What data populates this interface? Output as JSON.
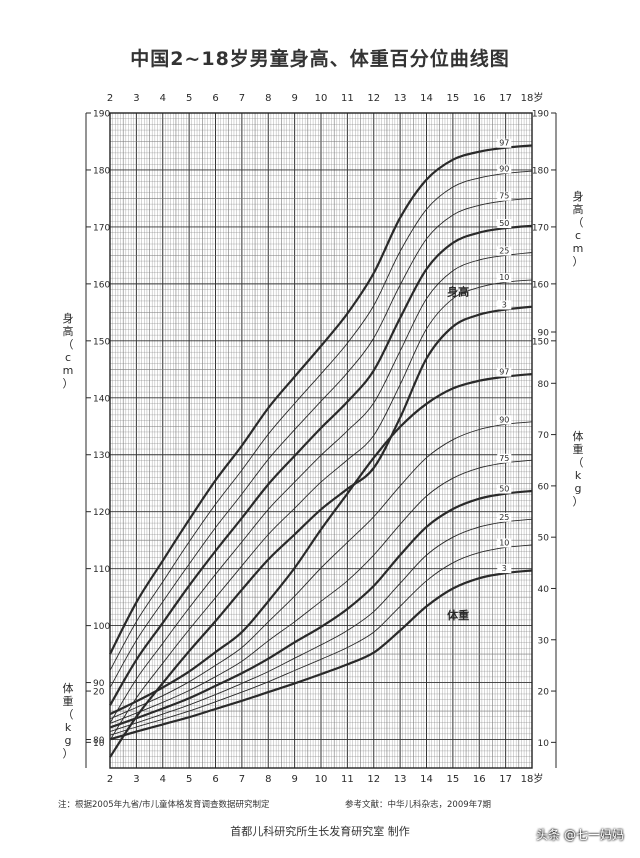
{
  "chart_data": {
    "type": "line",
    "title": "中国2~18岁男童身高、体重百分位曲线图",
    "x": [
      2,
      3,
      4,
      5,
      6,
      7,
      8,
      9,
      10,
      11,
      12,
      13,
      14,
      15,
      16,
      17,
      18
    ],
    "x_tick_labels": [
      "2",
      "3",
      "4",
      "5",
      "6",
      "7",
      "8",
      "9",
      "10",
      "11",
      "12",
      "13",
      "14",
      "15",
      "16",
      "17",
      "18岁"
    ],
    "xlim": [
      2,
      18
    ],
    "height_axis": {
      "label": "身高（cm）",
      "ylim": [
        75,
        190
      ],
      "ticks": [
        80,
        90,
        100,
        110,
        120,
        130,
        140,
        150,
        160,
        170,
        180,
        190
      ],
      "right_ticks": [
        150,
        160,
        170,
        180,
        190
      ],
      "series_label": "身高"
    },
    "weight_axis": {
      "label": "体重（kg）",
      "ylim": [
        5,
        90
      ],
      "ticks": [
        10,
        20,
        30,
        40,
        50,
        60,
        70,
        80,
        90
      ],
      "left_ticks": [
        10,
        20
      ],
      "series_label": "体重"
    },
    "height_series": [
      {
        "name": "97",
        "values": [
          95.0,
          104.1,
          111.4,
          118.6,
          125.5,
          131.6,
          138.2,
          143.7,
          149.1,
          154.8,
          161.9,
          171.6,
          178.3,
          181.8,
          183.2,
          183.9,
          184.3
        ]
      },
      {
        "name": "90",
        "values": [
          92.1,
          100.7,
          107.7,
          114.7,
          121.3,
          127.3,
          133.6,
          139.0,
          144.2,
          149.6,
          156.2,
          165.7,
          173.1,
          177.0,
          178.6,
          179.4,
          179.8
        ]
      },
      {
        "name": "75",
        "values": [
          89.1,
          97.4,
          104.2,
          110.8,
          117.2,
          123.1,
          129.2,
          134.4,
          139.4,
          144.4,
          150.5,
          159.8,
          167.9,
          172.1,
          173.8,
          174.6,
          175.0
        ]
      },
      {
        "name": "50",
        "values": [
          86.0,
          94.0,
          100.5,
          107.0,
          113.1,
          118.9,
          124.8,
          129.8,
          134.7,
          139.3,
          144.8,
          154.0,
          162.6,
          167.2,
          169.0,
          169.8,
          170.2
        ]
      },
      {
        "name": "25",
        "values": [
          82.9,
          90.6,
          96.9,
          103.1,
          109.0,
          114.7,
          120.4,
          125.2,
          129.9,
          134.2,
          139.1,
          148.2,
          157.4,
          162.3,
          164.2,
          165.0,
          165.5
        ]
      },
      {
        "name": "10",
        "values": [
          79.9,
          87.3,
          93.4,
          99.3,
          104.9,
          110.5,
          116.0,
          120.6,
          125.2,
          129.1,
          133.4,
          142.3,
          152.1,
          157.4,
          159.4,
          160.3,
          160.7
        ]
      },
      {
        "name": "3",
        "values": [
          76.9,
          84.0,
          89.9,
          95.5,
          100.8,
          106.3,
          111.6,
          116.0,
          120.4,
          124.0,
          127.7,
          136.5,
          146.9,
          152.5,
          154.6,
          155.5,
          156.0
        ]
      }
    ],
    "weight_series": [
      {
        "name": "97",
        "values": [
          15.5,
          18.0,
          20.7,
          23.8,
          27.6,
          31.5,
          37.5,
          44.0,
          51.5,
          58.5,
          65.5,
          71.5,
          76.0,
          79.0,
          80.5,
          81.3,
          81.8
        ]
      },
      {
        "name": "90",
        "values": [
          14.6,
          16.8,
          19.1,
          21.8,
          25.0,
          28.5,
          33.5,
          38.5,
          44.0,
          49.0,
          54.0,
          60.0,
          65.5,
          69.0,
          71.0,
          72.0,
          72.5
        ]
      },
      {
        "name": "75",
        "values": [
          13.7,
          15.7,
          17.8,
          20.1,
          22.8,
          25.8,
          29.8,
          33.5,
          37.5,
          41.5,
          46.5,
          52.5,
          58.0,
          61.5,
          63.5,
          64.5,
          65.0
        ]
      },
      {
        "name": "50",
        "values": [
          12.9,
          14.7,
          16.6,
          18.6,
          21.0,
          23.5,
          26.3,
          29.5,
          32.5,
          36.0,
          40.5,
          46.5,
          52.0,
          55.5,
          57.5,
          58.5,
          59.0
        ]
      },
      {
        "name": "25",
        "values": [
          12.1,
          13.8,
          15.5,
          17.3,
          19.3,
          21.5,
          23.8,
          26.4,
          29.0,
          31.8,
          35.5,
          41.0,
          46.5,
          50.0,
          52.0,
          53.0,
          53.5
        ]
      },
      {
        "name": "10",
        "values": [
          11.4,
          13.0,
          14.5,
          16.1,
          17.9,
          19.8,
          21.8,
          24.0,
          26.2,
          28.5,
          31.5,
          36.5,
          41.5,
          45.0,
          47.0,
          48.0,
          48.5
        ]
      },
      {
        "name": "3",
        "values": [
          10.6,
          12.1,
          13.5,
          14.9,
          16.5,
          18.1,
          19.8,
          21.5,
          23.3,
          25.2,
          27.5,
          31.8,
          36.5,
          40.0,
          42.0,
          43.0,
          43.5
        ]
      }
    ],
    "grid": true,
    "legend": "inline-right"
  },
  "footer": {
    "note": "注：根据2005年九省/市儿童体格发育调查数据研究制定",
    "reference": "参考文献：中华儿科杂志，2009年7期",
    "maker": "首都儿科研究所生长发育研究室 制作",
    "watermark": "头条 @七一妈妈"
  },
  "colors": {
    "ink": "#2a2a2a",
    "grid": "#777777",
    "paper": "#ffffff"
  }
}
